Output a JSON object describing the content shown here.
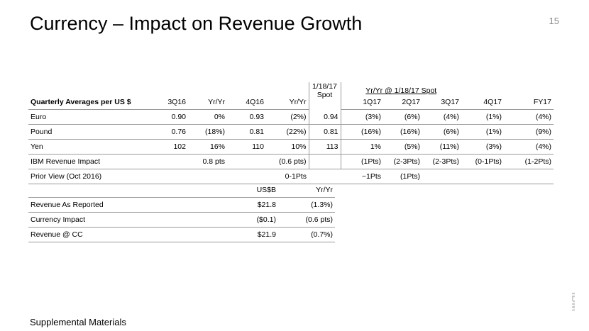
{
  "title": "Currency – Impact on Revenue Growth",
  "page_number": "15",
  "footer": "Supplemental Materials",
  "logo_text": "IBM",
  "main_table": {
    "spot_header_line1": "1/18/17",
    "spot_header_line2": "Spot",
    "group_header": "Yr/Yr @ 1/18/17 Spot",
    "headers": [
      "Quarterly Averages per US $",
      "3Q16",
      "Yr/Yr",
      "4Q16",
      "Yr/Yr",
      "1Q17",
      "2Q17",
      "3Q17",
      "4Q17",
      "FY17"
    ],
    "rows": [
      {
        "label": "Euro",
        "q3": "0.90",
        "yy3": "0%",
        "q4": "0.93",
        "yy4": "(2%)",
        "spot": "0.94",
        "c1": "(3%)",
        "c2": "(6%)",
        "c3": "(4%)",
        "c4": "(1%)",
        "c5": "(4%)"
      },
      {
        "label": "Pound",
        "q3": "0.76",
        "yy3": "(18%)",
        "q4": "0.81",
        "yy4": "(22%)",
        "spot": "0.81",
        "c1": "(16%)",
        "c2": "(16%)",
        "c3": "(6%)",
        "c4": "(1%)",
        "c5": "(9%)"
      },
      {
        "label": "Yen",
        "q3": "102",
        "yy3": "16%",
        "q4": "110",
        "yy4": "10%",
        "spot": "113",
        "c1": "1%",
        "c2": "(5%)",
        "c3": "(11%)",
        "c4": "(3%)",
        "c5": "(4%)"
      },
      {
        "label": "IBM Revenue Impact",
        "q3": "",
        "yy3": "0.8 pts",
        "q4": "",
        "yy4": "(0.6 pts)",
        "spot": "",
        "c1": "(1Pts)",
        "c2": "(2-3Pts)",
        "c3": "(2-3Pts)",
        "c4": "(0-1Pts)",
        "c5": "(1-2Pts)"
      },
      {
        "label": "Prior View (Oct 2016)",
        "q3": "",
        "yy3": "",
        "q4": "",
        "yy4": "0-1Pts",
        "spot": "",
        "c1": "~1Pts",
        "c2": "(1Pts)",
        "c3": "",
        "c4": "",
        "c5": ""
      }
    ]
  },
  "revenue_table": {
    "headers": [
      "",
      "US$B",
      "Yr/Yr"
    ],
    "rows": [
      {
        "label": "Revenue As Reported",
        "usd": "$21.8",
        "yy": "(1.3%)"
      },
      {
        "label": "Currency Impact",
        "usd": "($0.1)",
        "yy": "(0.6 pts)"
      },
      {
        "label": "Revenue @ CC",
        "usd": "$21.9",
        "yy": "(0.7%)"
      }
    ]
  }
}
